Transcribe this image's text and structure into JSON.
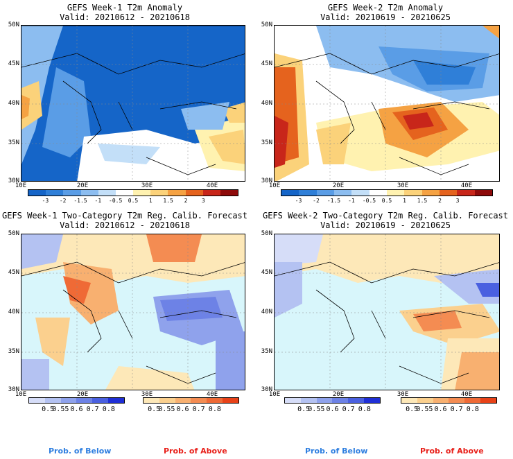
{
  "panels": [
    {
      "title": "GEFS Week-1 T2m Anomaly",
      "valid": "Valid: 20210612 - 20210618"
    },
    {
      "title": "GEFS Week-2 T2m Anomaly",
      "valid": "Valid: 20210619 - 20210625"
    },
    {
      "title": "GEFS Week-1 Two-Category T2m Reg. Calib. Forecast",
      "valid": "Valid: 20210612 - 20210618"
    },
    {
      "title": "GEFS Week-2 Two-Category T2m Reg. Calib. Forecast",
      "valid": "Valid: 20210619 - 20210625"
    }
  ],
  "axes": {
    "lat_ticks": [
      "50N",
      "45N",
      "40N",
      "35N",
      "30N"
    ],
    "lon_ticks": [
      "10E",
      "20E",
      "30E",
      "40E"
    ]
  },
  "anomaly_colorbar": {
    "labels": [
      "-3",
      "-2",
      "-1.5",
      "-1",
      "-0.5",
      "0.5",
      "1",
      "1.5",
      "2",
      "3"
    ],
    "colors": [
      "#1565c8",
      "#2f7fd8",
      "#5a9de6",
      "#8cbdf0",
      "#c3dff8",
      "#ffffff",
      "#fff2b0",
      "#fbd27a",
      "#f5a243",
      "#e5631e",
      "#c8261a",
      "#8e0a0a"
    ]
  },
  "prob_colorbars": {
    "below": {
      "labels": [
        "0.5",
        "0.55",
        "0.6",
        "0.7",
        "0.8"
      ],
      "colors": [
        "#d6ddf8",
        "#b4c2f2",
        "#8fa2ec",
        "#6d82e6",
        "#4a60e0",
        "#1f2fd6"
      ]
    },
    "above": {
      "labels": [
        "0.5",
        "0.55",
        "0.6",
        "0.7",
        "0.8"
      ],
      "colors": [
        "#fde8b8",
        "#fbd08e",
        "#f8b070",
        "#f48c52",
        "#ef6a36",
        "#e84218"
      ]
    }
  },
  "footer": {
    "below_label": "Prob. of Below",
    "above_label": "Prob. of Above",
    "below_color": "#2f7fe0",
    "above_color": "#e8201a"
  },
  "colors": {
    "sea_light": "#d8f6fb",
    "frame": "#000000"
  }
}
